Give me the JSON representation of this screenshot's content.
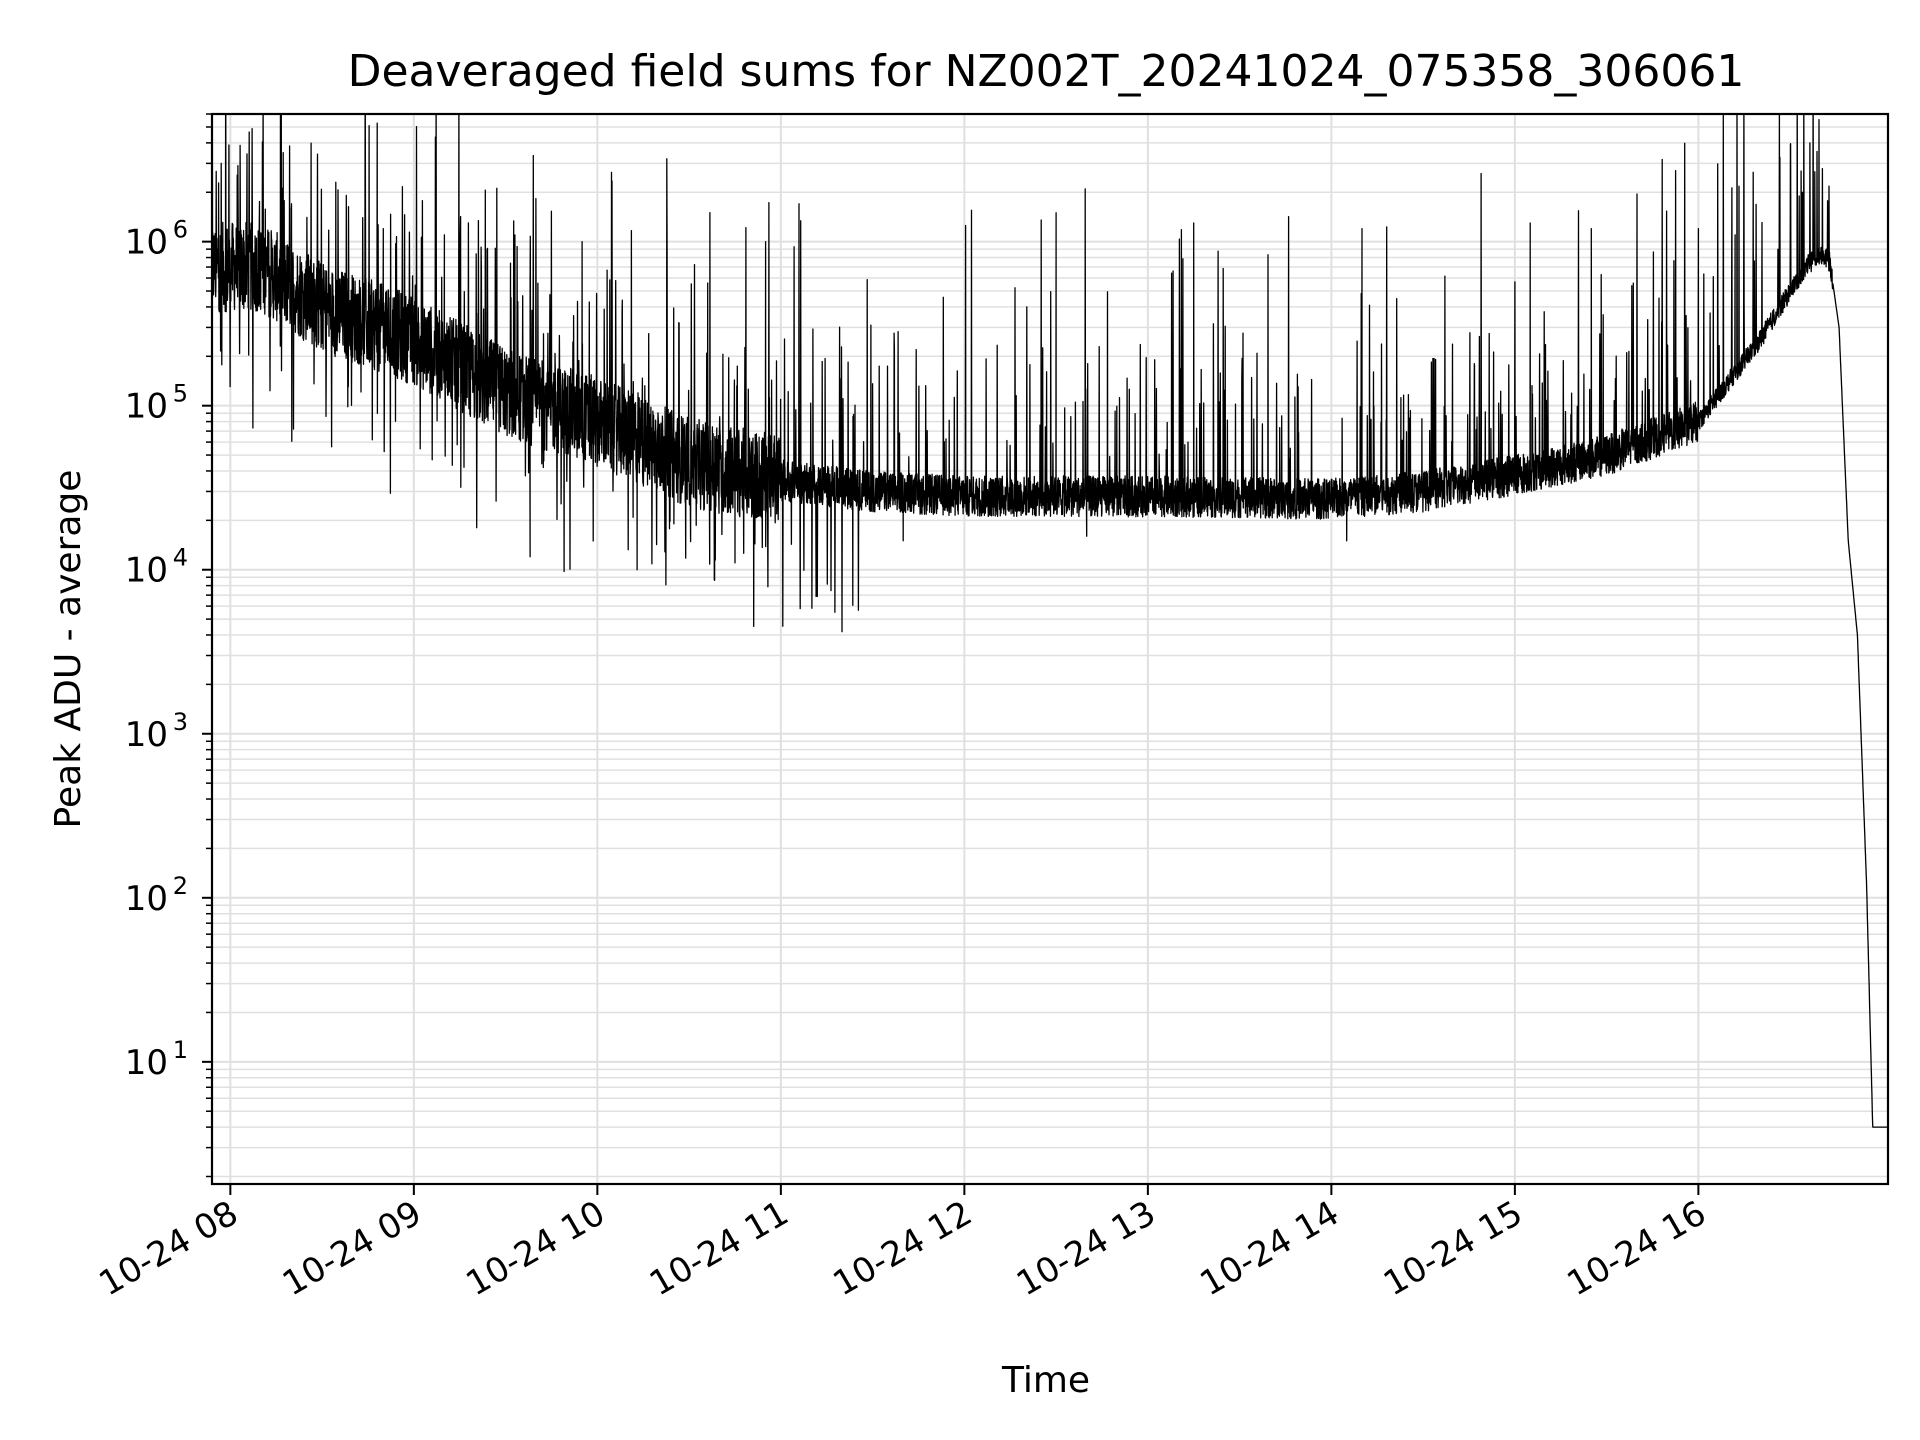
{
  "chart_data": {
    "type": "line",
    "title": "Deaveraged field sums for NZ002T_20241024_075358_306061",
    "xlabel": "Time",
    "ylabel": "Peak ADU - average",
    "y_scale": "log",
    "ylim": [
      1.8,
      6000000
    ],
    "xlim": [
      "2024-10-24 07:54",
      "2024-10-24 17:02"
    ],
    "grid": true,
    "line_color": "#000000",
    "grid_color": "#e0e0e0",
    "x_ticks": [
      {
        "t": "2024-10-24 08:00",
        "label": "10-24 08"
      },
      {
        "t": "2024-10-24 09:00",
        "label": "10-24 09"
      },
      {
        "t": "2024-10-24 10:00",
        "label": "10-24 10"
      },
      {
        "t": "2024-10-24 11:00",
        "label": "10-24 11"
      },
      {
        "t": "2024-10-24 12:00",
        "label": "10-24 12"
      },
      {
        "t": "2024-10-24 13:00",
        "label": "10-24 13"
      },
      {
        "t": "2024-10-24 14:00",
        "label": "10-24 14"
      },
      {
        "t": "2024-10-24 15:00",
        "label": "10-24 15"
      },
      {
        "t": "2024-10-24 16:00",
        "label": "10-24 16"
      }
    ],
    "y_ticks": [
      {
        "value": 10,
        "base": "10",
        "exp": "1"
      },
      {
        "value": 100,
        "base": "10",
        "exp": "2"
      },
      {
        "value": 1000,
        "base": "10",
        "exp": "3"
      },
      {
        "value": 10000,
        "base": "10",
        "exp": "4"
      },
      {
        "value": 100000,
        "base": "10",
        "exp": "5"
      },
      {
        "value": 1000000,
        "base": "10",
        "exp": "6"
      }
    ],
    "series": [
      {
        "baseline": [
          [
            "2024-10-24 07:54",
            700000
          ],
          [
            "2024-10-24 08:10",
            700000
          ],
          [
            "2024-10-24 08:30",
            400000
          ],
          [
            "2024-10-24 09:00",
            250000
          ],
          [
            "2024-10-24 09:30",
            120000
          ],
          [
            "2024-10-24 10:00",
            80000
          ],
          [
            "2024-10-24 10:30",
            45000
          ],
          [
            "2024-10-24 11:00",
            35000
          ],
          [
            "2024-10-24 11:30",
            30000
          ],
          [
            "2024-10-24 12:00",
            28000
          ],
          [
            "2024-10-24 13:00",
            28000
          ],
          [
            "2024-10-24 14:00",
            27000
          ],
          [
            "2024-10-24 14:30",
            30000
          ],
          [
            "2024-10-24 15:00",
            38000
          ],
          [
            "2024-10-24 15:30",
            50000
          ],
          [
            "2024-10-24 16:00",
            80000
          ],
          [
            "2024-10-24 16:20",
            250000
          ],
          [
            "2024-10-24 16:35",
            700000
          ],
          [
            "2024-10-24 16:40",
            850000
          ],
          [
            "2024-10-24 16:43",
            750000
          ],
          [
            "2024-10-24 16:46",
            300000
          ],
          [
            "2024-10-24 16:49",
            15000
          ],
          [
            "2024-10-24 16:52",
            4000
          ],
          [
            "2024-10-24 16:55",
            120
          ],
          [
            "2024-10-24 16:57",
            4
          ],
          [
            "2024-10-24 17:02",
            4
          ]
        ],
        "peaks": [
          [
            "2024-10-24 07:57",
            3000000
          ],
          [
            "2024-10-24 08:20",
            1700000
          ],
          [
            "2024-10-24 08:50",
            1200000
          ],
          [
            "2024-10-24 09:10",
            1100000
          ],
          [
            "2024-10-24 09:55",
            1000000
          ],
          [
            "2024-10-24 10:55",
            1000000
          ],
          [
            "2024-10-24 12:30",
            1500000
          ],
          [
            "2024-10-24 13:15",
            1300000
          ],
          [
            "2024-10-24 14:10",
            1200000
          ],
          [
            "2024-10-24 15:05",
            1300000
          ],
          [
            "2024-10-24 15:25",
            1200000
          ],
          [
            "2024-10-24 16:00",
            1200000
          ],
          [
            "2024-10-24 16:12",
            1100000
          ],
          [
            "2024-10-24 16:34",
            2000000
          ]
        ],
        "troughs": [
          [
            "2024-10-24 09:38",
            12000
          ],
          [
            "2024-10-24 10:13",
            10000
          ],
          [
            "2024-10-24 10:45",
            11000
          ],
          [
            "2024-10-24 11:40",
            15000
          ],
          [
            "2024-10-24 12:40",
            16000
          ],
          [
            "2024-10-24 14:05",
            15000
          ]
        ]
      }
    ]
  }
}
